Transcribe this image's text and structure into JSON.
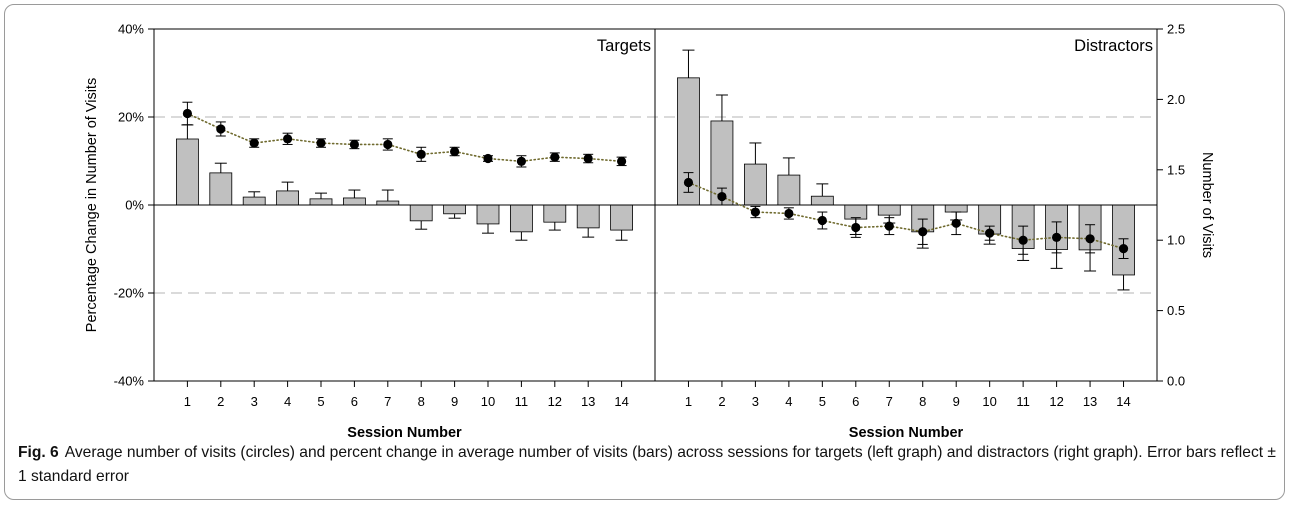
{
  "figure": {
    "caption_label": "Fig. 6",
    "caption_text": "Average number of visits (circles) and percent change in average number of visits (bars) across sessions for targets (left graph) and distractors (right graph). Error bars reflect ± 1 standard error"
  },
  "colors": {
    "bar_fill": "#c0c0c0",
    "bar_stroke": "#000000",
    "marker": "#000000",
    "trend_line": "#6f6a2e",
    "reference_line": "#c4c4c4",
    "axis": "#000000"
  },
  "chart_data": {
    "type": "bar",
    "ylabel": "Percentage Change in Number of Visits",
    "ylim": [
      -40,
      40
    ],
    "y_ticks": [
      40,
      20,
      0,
      -20,
      -40
    ],
    "y_tick_labels": [
      "40%",
      "20%",
      "0%",
      "-20%",
      "-40%"
    ],
    "y2label": "Number of Visits",
    "y2lim": [
      0,
      2.5
    ],
    "y2_ticks": [
      2.5,
      2.0,
      1.5,
      1.0,
      0.5,
      0.0
    ],
    "y2_tick_labels": [
      "2.5",
      "2.0",
      "1.5",
      "1.0",
      "0.5",
      "0.0"
    ],
    "reference_lines": [
      20,
      -20
    ],
    "grid": false,
    "legend": "none",
    "panels": [
      {
        "label": "Targets",
        "xlabel": "Session Number",
        "categories": [
          "1",
          "2",
          "3",
          "4",
          "5",
          "6",
          "7",
          "8",
          "9",
          "10",
          "11",
          "12",
          "13",
          "14"
        ],
        "percent_change": [
          15.0,
          7.3,
          1.8,
          3.2,
          1.4,
          1.6,
          0.9,
          -3.6,
          -2.0,
          -4.3,
          -6.1,
          -3.9,
          -5.2,
          -5.7
        ],
        "percent_change_se": [
          3.2,
          2.2,
          1.2,
          2.0,
          1.3,
          1.8,
          2.5,
          1.9,
          1.0,
          2.1,
          1.9,
          1.8,
          2.1,
          2.3
        ],
        "visits": [
          1.9,
          1.79,
          1.69,
          1.72,
          1.69,
          1.68,
          1.68,
          1.61,
          1.63,
          1.58,
          1.56,
          1.59,
          1.58,
          1.56
        ],
        "visits_se": [
          0.08,
          0.05,
          0.03,
          0.04,
          0.03,
          0.03,
          0.04,
          0.05,
          0.03,
          0.02,
          0.04,
          0.03,
          0.03,
          0.03
        ]
      },
      {
        "label": "Distractors",
        "xlabel": "Session Number",
        "categories": [
          "1",
          "2",
          "3",
          "4",
          "5",
          "6",
          "7",
          "8",
          "9",
          "10",
          "11",
          "12",
          "13",
          "14"
        ],
        "percent_change": [
          28.9,
          19.1,
          9.3,
          6.8,
          2.0,
          -3.2,
          -2.3,
          -6.1,
          -1.6,
          -6.6,
          -9.9,
          -10.1,
          -10.2,
          -15.9
        ],
        "percent_change_se": [
          6.3,
          5.9,
          4.8,
          3.9,
          2.8,
          3.5,
          1.8,
          3.7,
          1.8,
          2.3,
          2.7,
          4.3,
          4.8,
          3.4
        ],
        "visits": [
          1.41,
          1.31,
          1.2,
          1.19,
          1.14,
          1.09,
          1.1,
          1.06,
          1.12,
          1.05,
          1.0,
          1.02,
          1.01,
          0.94
        ],
        "visits_se": [
          0.07,
          0.06,
          0.04,
          0.04,
          0.06,
          0.07,
          0.06,
          0.09,
          0.08,
          0.05,
          0.1,
          0.11,
          0.1,
          0.07
        ]
      }
    ]
  }
}
